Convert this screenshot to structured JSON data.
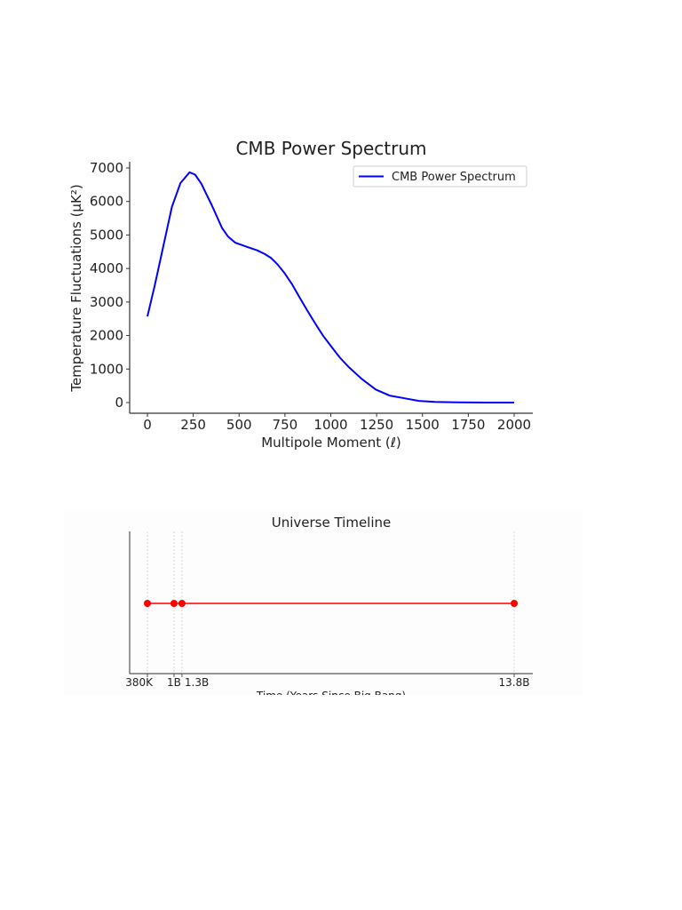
{
  "chart_data": [
    {
      "type": "line",
      "title": "CMB Power Spectrum",
      "xlabel": "Multipole Moment (ℓ)",
      "ylabel": "Temperature Fluctuations (μK²)",
      "xlim": [
        -100,
        2100
      ],
      "ylim": [
        -300,
        7200
      ],
      "xticks": [
        0,
        250,
        500,
        750,
        1000,
        1250,
        1500,
        1750,
        2000
      ],
      "yticks": [
        0,
        1000,
        2000,
        3000,
        4000,
        5000,
        6000,
        7000
      ],
      "grid": false,
      "legend": "top-right",
      "series": [
        {
          "name": "CMB Power Spectrum",
          "color": "#0000ff",
          "x": [
            0,
            40,
            84,
            133,
            180,
            230,
            260,
            294,
            350,
            407,
            440,
            479,
            540,
            600,
            640,
            673,
            710,
            746,
            790,
            826,
            870,
            923,
            960,
            1003,
            1050,
            1100,
            1170,
            1245,
            1320,
            1406,
            1480,
            1568,
            1700,
            1850,
            2000
          ],
          "y": [
            2570,
            3500,
            4590,
            5830,
            6550,
            6870,
            6800,
            6530,
            5900,
            5210,
            4950,
            4770,
            4650,
            4540,
            4430,
            4320,
            4120,
            3880,
            3520,
            3170,
            2760,
            2290,
            1980,
            1670,
            1340,
            1050,
            700,
            390,
            210,
            125,
            50,
            20,
            5,
            0,
            0
          ]
        }
      ]
    },
    {
      "type": "line",
      "title": "Universe Timeline",
      "xlabel": "Time (Years Since Big Bang)",
      "xticks": [
        380000,
        1000000000,
        1300000000,
        13800000000
      ],
      "xticklabels": [
        "380K",
        "1B",
        "1.3B",
        "13.8B"
      ],
      "grid": true,
      "series": [
        {
          "color": "#ff0000",
          "x": [
            380000,
            1000000000,
            1300000000,
            13800000000
          ],
          "y": [
            1,
            1,
            1,
            1
          ]
        }
      ]
    }
  ]
}
